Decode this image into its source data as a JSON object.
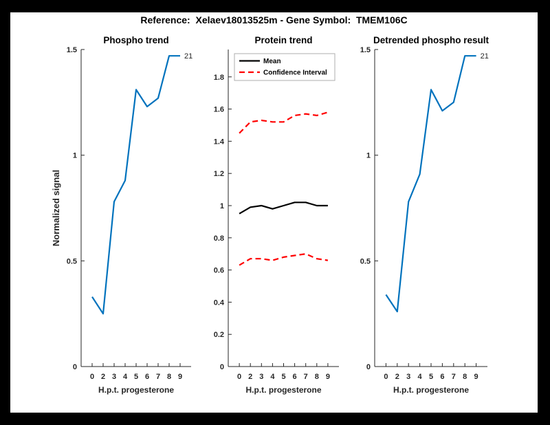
{
  "figure": {
    "title": "Reference:  Xelaev18013525m - Gene Symbol:  TMEM106C"
  },
  "colors": {
    "blue": "#0072BD",
    "red": "#ff0000",
    "black": "#000000",
    "axis": "#262626",
    "title_text": "#000000",
    "legend_border": "#adadad",
    "background": "#ffffff",
    "frame": "#000000"
  },
  "chart_data": [
    {
      "type": "line",
      "title": "Phospho trend",
      "xlabel": "H.p.t. progesterone",
      "ylabel": "Normalized signal",
      "x_tick_labels": [
        "0",
        "2",
        "3",
        "4",
        "5",
        "6",
        "7",
        "8",
        "9"
      ],
      "y_ticks": [
        0,
        0.5,
        1,
        1.5
      ],
      "y_tick_labels": [
        "0",
        "0.5",
        "1",
        "1.5"
      ],
      "ylim": [
        0,
        1.5
      ],
      "xlim_units": [
        0,
        10
      ],
      "grid": false,
      "series": [
        {
          "name": "phospho-signal",
          "color": "blue",
          "style": "solid",
          "values": [
            0.33,
            0.25,
            0.78,
            0.88,
            1.31,
            1.23,
            1.27,
            1.47,
            1.47
          ]
        }
      ],
      "annotation": {
        "text": "21"
      },
      "legend": null
    },
    {
      "type": "line",
      "title": "Protein trend",
      "xlabel": "H.p.t. progesterone",
      "ylabel": "",
      "x_tick_labels": [
        "0",
        "2",
        "3",
        "4",
        "5",
        "6",
        "7",
        "8",
        "9"
      ],
      "y_ticks": [
        0,
        0.2,
        0.4,
        0.6,
        0.8,
        1,
        1.2,
        1.4,
        1.6,
        1.8
      ],
      "y_tick_labels": [
        "0",
        "0.2",
        "0.4",
        "0.6",
        "0.8",
        "1",
        "1.2",
        "1.4",
        "1.6",
        "1.8"
      ],
      "ylim": [
        0,
        1.97
      ],
      "xlim_units": [
        0,
        10
      ],
      "grid": false,
      "series": [
        {
          "name": "mean",
          "color": "black",
          "style": "solid",
          "values": [
            0.95,
            0.99,
            1.0,
            0.98,
            1.0,
            1.02,
            1.02,
            1.0,
            1.0
          ]
        },
        {
          "name": "confidence-interval-upper",
          "color": "red",
          "style": "dashed",
          "values": [
            1.45,
            1.52,
            1.53,
            1.52,
            1.52,
            1.56,
            1.57,
            1.56,
            1.58
          ]
        },
        {
          "name": "confidence-interval-lower",
          "color": "red",
          "style": "dashed",
          "values": [
            0.63,
            0.67,
            0.67,
            0.66,
            0.68,
            0.69,
            0.7,
            0.67,
            0.66
          ]
        }
      ],
      "annotation": null,
      "legend": {
        "position": "northwest",
        "items": [
          {
            "label": "Mean",
            "color": "black",
            "style": "solid"
          },
          {
            "label": "Confidence Interval",
            "color": "red",
            "style": "dashed"
          }
        ]
      }
    },
    {
      "type": "line",
      "title": "Detrended phospho result",
      "xlabel": "H.p.t. progesterone",
      "ylabel": "",
      "x_tick_labels": [
        "0",
        "2",
        "3",
        "4",
        "5",
        "6",
        "7",
        "8",
        "9"
      ],
      "y_ticks": [
        0,
        0.5,
        1,
        1.5
      ],
      "y_tick_labels": [
        "0",
        "0.5",
        "1",
        "1.5"
      ],
      "ylim": [
        0,
        1.5
      ],
      "xlim_units": [
        0,
        10
      ],
      "grid": false,
      "series": [
        {
          "name": "detrended-phospho-signal",
          "color": "blue",
          "style": "solid",
          "values": [
            0.34,
            0.26,
            0.78,
            0.91,
            1.31,
            1.21,
            1.25,
            1.47,
            1.47
          ]
        }
      ],
      "annotation": {
        "text": "21"
      },
      "legend": null
    }
  ]
}
